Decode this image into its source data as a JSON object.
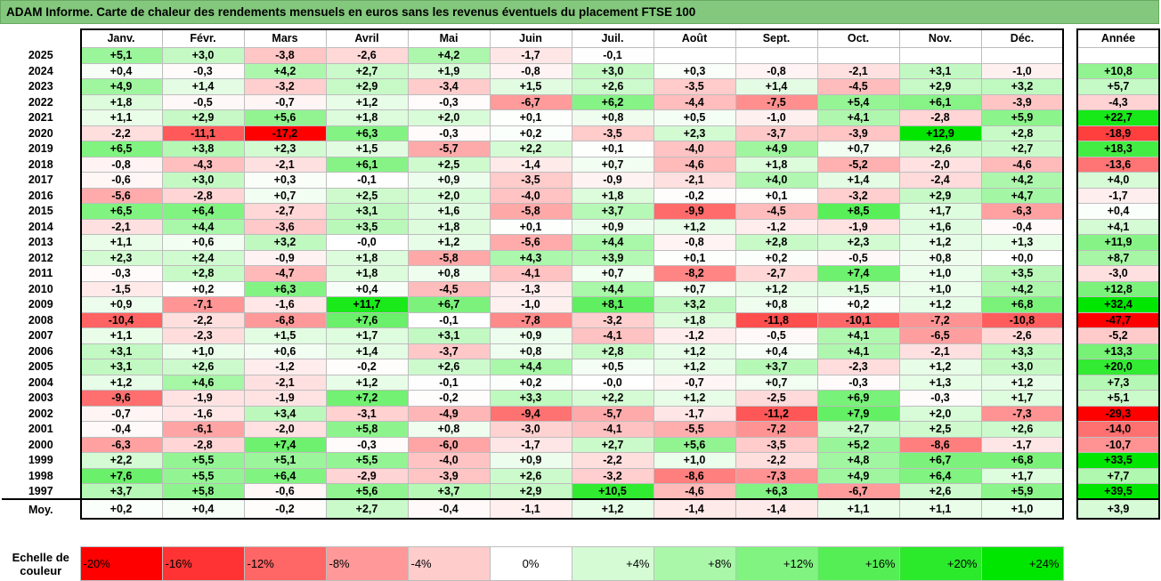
{
  "title": "ADAM Informe. Carte de chaleur des rendements mensuels en euros sans les revenus éventuels du placement FTSE 100",
  "chart_data": {
    "type": "heatmap",
    "title": "ADAM Informe. Carte de chaleur des rendements mensuels en euros sans les revenus éventuels du placement FTSE 100",
    "columns": [
      "Janv.",
      "Févr.",
      "Mars",
      "Avril",
      "Mai",
      "Juin",
      "Juil.",
      "Août",
      "Sept.",
      "Oct.",
      "Nov.",
      "Déc."
    ],
    "annual_header": "Année",
    "average_label": "Moy.",
    "rows": [
      {
        "year": "2025",
        "values": [
          "+5,1",
          "+3,0",
          "-3,8",
          "-2,6",
          "+4,2",
          "-1,7",
          "-0,1",
          "",
          "",
          "",
          "",
          ""
        ],
        "annual": ""
      },
      {
        "year": "2024",
        "values": [
          "+0,4",
          "-0,3",
          "+4,2",
          "+2,7",
          "+1,9",
          "-0,8",
          "+3,0",
          "+0,3",
          "-0,8",
          "-2,1",
          "+3,1",
          "-1,0"
        ],
        "annual": "+10,8"
      },
      {
        "year": "2023",
        "values": [
          "+4,9",
          "+1,4",
          "-3,2",
          "+2,9",
          "-3,4",
          "+1,5",
          "+2,6",
          "-3,5",
          "+1,4",
          "-4,5",
          "+2,9",
          "+3,2"
        ],
        "annual": "+5,7"
      },
      {
        "year": "2022",
        "values": [
          "+1,8",
          "-0,5",
          "-0,7",
          "+1,2",
          "-0,3",
          "-6,7",
          "+6,2",
          "-4,4",
          "-7,5",
          "+5,4",
          "+6,1",
          "-3,9"
        ],
        "annual": "-4,3"
      },
      {
        "year": "2021",
        "values": [
          "+1,1",
          "+2,9",
          "+5,6",
          "+1,8",
          "+2,0",
          "+0,1",
          "+0,8",
          "+0,5",
          "-1,0",
          "+4,1",
          "-2,8",
          "+5,9"
        ],
        "annual": "+22,7"
      },
      {
        "year": "2020",
        "values": [
          "-2,2",
          "-11,1",
          "-17,2",
          "+6,3",
          "-0,3",
          "+0,2",
          "-3,5",
          "+2,3",
          "-3,7",
          "-3,9",
          "+12,9",
          "+2,8"
        ],
        "annual": "-18,9"
      },
      {
        "year": "2019",
        "values": [
          "+6,5",
          "+3,8",
          "+2,3",
          "+1,5",
          "-5,7",
          "+2,2",
          "+0,1",
          "-4,0",
          "+4,9",
          "+0,7",
          "+2,6",
          "+2,7"
        ],
        "annual": "+18,3"
      },
      {
        "year": "2018",
        "values": [
          "-0,8",
          "-4,3",
          "-2,1",
          "+6,1",
          "+2,5",
          "-1,4",
          "+0,7",
          "-4,6",
          "+1,8",
          "-5,2",
          "-2,0",
          "-4,6"
        ],
        "annual": "-13,6"
      },
      {
        "year": "2017",
        "values": [
          "-0,6",
          "+3,0",
          "+0,3",
          "-0,1",
          "+0,9",
          "-3,5",
          "-0,9",
          "-2,1",
          "+4,0",
          "+1,4",
          "-2,4",
          "+4,2"
        ],
        "annual": "+4,0"
      },
      {
        "year": "2016",
        "values": [
          "-5,6",
          "-2,8",
          "+0,7",
          "+2,5",
          "+2,0",
          "-4,0",
          "+1,8",
          "-0,2",
          "+0,1",
          "-3,2",
          "+2,9",
          "+4,7"
        ],
        "annual": "-1,7"
      },
      {
        "year": "2015",
        "values": [
          "+6,5",
          "+6,4",
          "-2,7",
          "+3,1",
          "+1,6",
          "-5,8",
          "+3,7",
          "-9,9",
          "-4,5",
          "+8,5",
          "+1,7",
          "-6,3"
        ],
        "annual": "+0,4"
      },
      {
        "year": "2014",
        "values": [
          "-2,1",
          "+4,4",
          "-3,6",
          "+3,5",
          "+1,8",
          "+0,1",
          "+0,9",
          "+1,2",
          "-1,2",
          "-1,9",
          "+1,6",
          "-0,4"
        ],
        "annual": "+4,1"
      },
      {
        "year": "2013",
        "values": [
          "+1,1",
          "+0,6",
          "+3,2",
          "-0,0",
          "+1,2",
          "-5,6",
          "+4,4",
          "-0,8",
          "+2,8",
          "+2,3",
          "+1,2",
          "+1,3"
        ],
        "annual": "+11,9"
      },
      {
        "year": "2012",
        "values": [
          "+2,3",
          "+2,4",
          "-0,9",
          "+1,8",
          "-5,8",
          "+4,3",
          "+3,9",
          "+0,1",
          "+0,2",
          "-0,5",
          "+0,8",
          "+0,0"
        ],
        "annual": "+8,7"
      },
      {
        "year": "2011",
        "values": [
          "-0,3",
          "+2,8",
          "-4,7",
          "+1,8",
          "+0,8",
          "-4,1",
          "+0,7",
          "-8,2",
          "-2,7",
          "+7,4",
          "+1,0",
          "+3,5"
        ],
        "annual": "-3,0"
      },
      {
        "year": "2010",
        "values": [
          "-1,5",
          "+0,2",
          "+6,3",
          "+0,4",
          "-4,5",
          "-1,3",
          "+4,4",
          "+0,7",
          "+1,2",
          "+1,5",
          "+1,0",
          "+4,2"
        ],
        "annual": "+12,8"
      },
      {
        "year": "2009",
        "values": [
          "+0,9",
          "-7,1",
          "-1,6",
          "+11,7",
          "+6,7",
          "-1,0",
          "+8,1",
          "+3,2",
          "+0,8",
          "+0,2",
          "+1,2",
          "+6,8"
        ],
        "annual": "+32,4"
      },
      {
        "year": "2008",
        "values": [
          "-10,4",
          "-2,2",
          "-6,8",
          "+7,6",
          "-0,1",
          "-7,8",
          "-3,2",
          "+1,8",
          "-11,8",
          "-10,1",
          "-7,2",
          "-10,8"
        ],
        "annual": "-47,7"
      },
      {
        "year": "2007",
        "values": [
          "+1,1",
          "-2,3",
          "+1,5",
          "+1,7",
          "+3,1",
          "+0,9",
          "-4,1",
          "-1,2",
          "-0,5",
          "+4,1",
          "-6,5",
          "-2,6"
        ],
        "annual": "-5,2"
      },
      {
        "year": "2006",
        "values": [
          "+3,1",
          "+1,0",
          "+0,6",
          "+1,4",
          "-3,7",
          "+0,8",
          "+2,8",
          "+1,2",
          "+0,4",
          "+4,1",
          "-2,1",
          "+3,3"
        ],
        "annual": "+13,3"
      },
      {
        "year": "2005",
        "values": [
          "+3,1",
          "+2,6",
          "-1,2",
          "-0,2",
          "+2,6",
          "+4,4",
          "+0,5",
          "+1,2",
          "+3,7",
          "-2,3",
          "+1,2",
          "+3,0"
        ],
        "annual": "+20,0"
      },
      {
        "year": "2004",
        "values": [
          "+1,2",
          "+4,6",
          "-2,1",
          "+1,2",
          "-0,1",
          "+0,2",
          "-0,0",
          "-0,7",
          "+0,7",
          "-0,3",
          "+1,3",
          "+1,2"
        ],
        "annual": "+7,3"
      },
      {
        "year": "2003",
        "values": [
          "-9,6",
          "-1,9",
          "-1,9",
          "+7,2",
          "-0,2",
          "+3,3",
          "+2,2",
          "+1,2",
          "-2,5",
          "+6,9",
          "-0,3",
          "+1,7"
        ],
        "annual": "+5,1"
      },
      {
        "year": "2002",
        "values": [
          "-0,7",
          "-1,6",
          "+3,4",
          "-3,1",
          "-4,9",
          "-9,4",
          "-5,7",
          "-1,7",
          "-11,2",
          "+7,9",
          "+2,0",
          "-7,3"
        ],
        "annual": "-29,3"
      },
      {
        "year": "2001",
        "values": [
          "-0,4",
          "-6,1",
          "-2,0",
          "+5,8",
          "+0,8",
          "-3,0",
          "-4,1",
          "-5,5",
          "-7,2",
          "+2,7",
          "+2,5",
          "+2,6"
        ],
        "annual": "-14,0"
      },
      {
        "year": "2000",
        "values": [
          "-6,3",
          "-2,8",
          "+7,4",
          "-0,3",
          "-6,0",
          "-1,7",
          "+2,7",
          "+5,6",
          "-3,5",
          "+5,2",
          "-8,6",
          "-1,7"
        ],
        "annual": "-10,7"
      },
      {
        "year": "1999",
        "values": [
          "+2,2",
          "+5,5",
          "+5,1",
          "+5,5",
          "-4,0",
          "+0,9",
          "-2,2",
          "+1,0",
          "-2,2",
          "+4,8",
          "+6,7",
          "+6,8"
        ],
        "annual": "+33,5"
      },
      {
        "year": "1998",
        "values": [
          "+7,6",
          "+5,5",
          "+6,4",
          "-2,9",
          "-3,9",
          "+2,6",
          "-3,2",
          "-8,6",
          "-7,3",
          "+4,9",
          "+6,4",
          "+1,7"
        ],
        "annual": "+7,7"
      },
      {
        "year": "1997",
        "values": [
          "+3,7",
          "+5,8",
          "-0,6",
          "+5,6",
          "+3,7",
          "+2,9",
          "+10,5",
          "-4,6",
          "+6,3",
          "-6,7",
          "+2,6",
          "+5,9"
        ],
        "annual": "+39,5"
      }
    ],
    "average": {
      "values": [
        "+0,2",
        "+0,4",
        "-0,2",
        "+2,7",
        "-0,4",
        "-1,1",
        "+1,2",
        "-1,4",
        "-1,4",
        "+1,1",
        "+1,1",
        "+1,0"
      ],
      "annual": "+3,9"
    },
    "scale": {
      "label_line1": "Echelle de",
      "label_line2": "couleur",
      "steps": [
        {
          "label": "-20%",
          "value": -20,
          "align": "left"
        },
        {
          "label": "-16%",
          "value": -16,
          "align": "left"
        },
        {
          "label": "-12%",
          "value": -12,
          "align": "left"
        },
        {
          "label": "-8%",
          "value": -8,
          "align": "left"
        },
        {
          "label": "-4%",
          "value": -4,
          "align": "left"
        },
        {
          "label": "0%",
          "value": 0,
          "align": "center"
        },
        {
          "label": "+4%",
          "value": 4,
          "align": "right"
        },
        {
          "label": "+8%",
          "value": 8,
          "align": "right"
        },
        {
          "label": "+12%",
          "value": 12,
          "align": "right"
        },
        {
          "label": "+16%",
          "value": 16,
          "align": "right"
        },
        {
          "label": "+20%",
          "value": 20,
          "align": "right"
        },
        {
          "label": "+24%",
          "value": 24,
          "align": "right"
        }
      ]
    },
    "colors": {
      "negative": "#ff0000",
      "zero": "#ffffff",
      "positive": "#00e600",
      "title_bar": "#83c87c"
    }
  }
}
